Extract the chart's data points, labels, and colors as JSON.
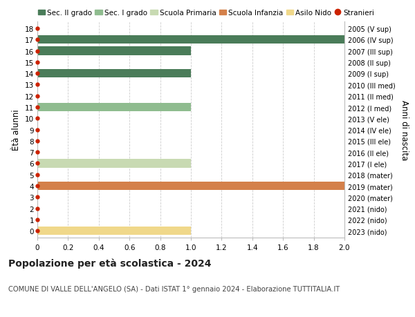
{
  "ages": [
    18,
    17,
    16,
    15,
    14,
    13,
    12,
    11,
    10,
    9,
    8,
    7,
    6,
    5,
    4,
    3,
    2,
    1,
    0
  ],
  "right_labels": [
    "2005 (V sup)",
    "2006 (IV sup)",
    "2007 (III sup)",
    "2008 (II sup)",
    "2009 (I sup)",
    "2010 (III med)",
    "2011 (II med)",
    "2012 (I med)",
    "2013 (V ele)",
    "2014 (IV ele)",
    "2015 (III ele)",
    "2016 (II ele)",
    "2017 (I ele)",
    "2018 (mater)",
    "2019 (mater)",
    "2020 (mater)",
    "2021 (nido)",
    "2022 (nido)",
    "2023 (nido)"
  ],
  "bars": [
    {
      "age": 18,
      "value": 0,
      "color": null
    },
    {
      "age": 17,
      "value": 2.0,
      "color": "#4a7c59"
    },
    {
      "age": 16,
      "value": 1.0,
      "color": "#4a7c59"
    },
    {
      "age": 15,
      "value": 0,
      "color": null
    },
    {
      "age": 14,
      "value": 1.0,
      "color": "#4a7c59"
    },
    {
      "age": 13,
      "value": 0,
      "color": null
    },
    {
      "age": 12,
      "value": 0,
      "color": null
    },
    {
      "age": 11,
      "value": 1.0,
      "color": "#8fbc8f"
    },
    {
      "age": 10,
      "value": 0,
      "color": null
    },
    {
      "age": 9,
      "value": 0,
      "color": null
    },
    {
      "age": 8,
      "value": 0,
      "color": null
    },
    {
      "age": 7,
      "value": 0,
      "color": null
    },
    {
      "age": 6,
      "value": 1.0,
      "color": "#c8dab2"
    },
    {
      "age": 5,
      "value": 0,
      "color": null
    },
    {
      "age": 4,
      "value": 2.0,
      "color": "#d4804a"
    },
    {
      "age": 3,
      "value": 0,
      "color": null
    },
    {
      "age": 2,
      "value": 0,
      "color": null
    },
    {
      "age": 1,
      "value": 0,
      "color": null
    },
    {
      "age": 0,
      "value": 1.0,
      "color": "#f0d88a"
    }
  ],
  "stranieri_dots": [
    18,
    17,
    16,
    15,
    14,
    13,
    12,
    11,
    10,
    9,
    8,
    7,
    6,
    5,
    4,
    3,
    2,
    1,
    0
  ],
  "dot_color": "#cc2200",
  "xlim": [
    0,
    2.0
  ],
  "xticks": [
    0,
    0.2,
    0.4,
    0.6,
    0.8,
    1.0,
    1.2,
    1.4,
    1.6,
    1.8,
    2.0
  ],
  "xtick_labels": [
    "0",
    "0.2",
    "0.4",
    "0.6",
    "0.8",
    "1.0",
    "1.2",
    "1.4",
    "1.6",
    "1.8",
    "2.0"
  ],
  "ylabel_left": "Ètà alunni",
  "ylabel_right": "Anni di nascita",
  "legend_items": [
    {
      "label": "Sec. II grado",
      "color": "#4a7c59",
      "type": "patch"
    },
    {
      "label": "Sec. I grado",
      "color": "#8fbc8f",
      "type": "patch"
    },
    {
      "label": "Scuola Primaria",
      "color": "#c8dab2",
      "type": "patch"
    },
    {
      "label": "Scuola Infanzia",
      "color": "#d4804a",
      "type": "patch"
    },
    {
      "label": "Asilo Nido",
      "color": "#f0d88a",
      "type": "patch"
    },
    {
      "label": "Stranieri",
      "color": "#cc2200",
      "type": "dot"
    }
  ],
  "title": "Popolazione per età scolastica - 2024",
  "subtitle": "COMUNE DI VALLE DELL'ANGELO (SA) - Dati ISTAT 1° gennaio 2024 - Elaborazione TUTTITALIA.IT",
  "bg_color": "#ffffff",
  "grid_color": "#cccccc",
  "bar_height": 0.75
}
